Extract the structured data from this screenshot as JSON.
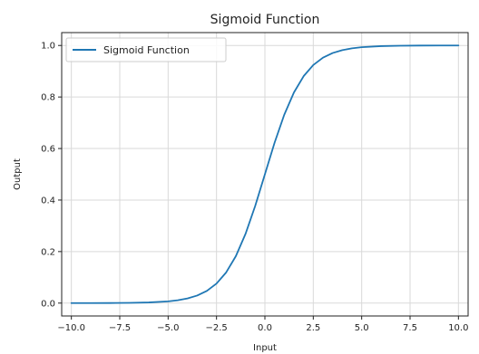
{
  "chart_data": {
    "type": "line",
    "title": "Sigmoid Function",
    "xlabel": "Input",
    "ylabel": "Output",
    "xlim": [
      -10.5,
      10.5
    ],
    "ylim": [
      -0.05,
      1.05
    ],
    "xticks": [
      -10.0,
      -7.5,
      -5.0,
      -2.5,
      0.0,
      2.5,
      5.0,
      7.5,
      10.0
    ],
    "xtick_labels": [
      "−10.0",
      "−7.5",
      "−5.0",
      "−2.5",
      "0.0",
      "2.5",
      "5.0",
      "7.5",
      "10.0"
    ],
    "yticks": [
      0.0,
      0.2,
      0.4,
      0.6,
      0.8,
      1.0
    ],
    "ytick_labels": [
      "0.0",
      "0.2",
      "0.4",
      "0.6",
      "0.8",
      "1.0"
    ],
    "grid": true,
    "legend_position": "top-left",
    "series": [
      {
        "name": "Sigmoid Function",
        "color": "#1f77b4",
        "x": [
          -10.0,
          -9.0,
          -8.0,
          -7.0,
          -6.0,
          -5.0,
          -4.5,
          -4.0,
          -3.5,
          -3.0,
          -2.5,
          -2.0,
          -1.5,
          -1.0,
          -0.5,
          0.0,
          0.5,
          1.0,
          1.5,
          2.0,
          2.5,
          3.0,
          3.5,
          4.0,
          4.5,
          5.0,
          6.0,
          7.0,
          8.0,
          9.0,
          10.0
        ],
        "y": [
          0.0,
          0.0001,
          0.0003,
          0.0009,
          0.0025,
          0.0067,
          0.011,
          0.018,
          0.0293,
          0.0474,
          0.0759,
          0.1192,
          0.1824,
          0.2689,
          0.3775,
          0.5,
          0.6225,
          0.7311,
          0.8176,
          0.8808,
          0.9241,
          0.9526,
          0.9707,
          0.982,
          0.989,
          0.9933,
          0.9975,
          0.9991,
          0.9997,
          0.9999,
          1.0
        ]
      }
    ]
  }
}
